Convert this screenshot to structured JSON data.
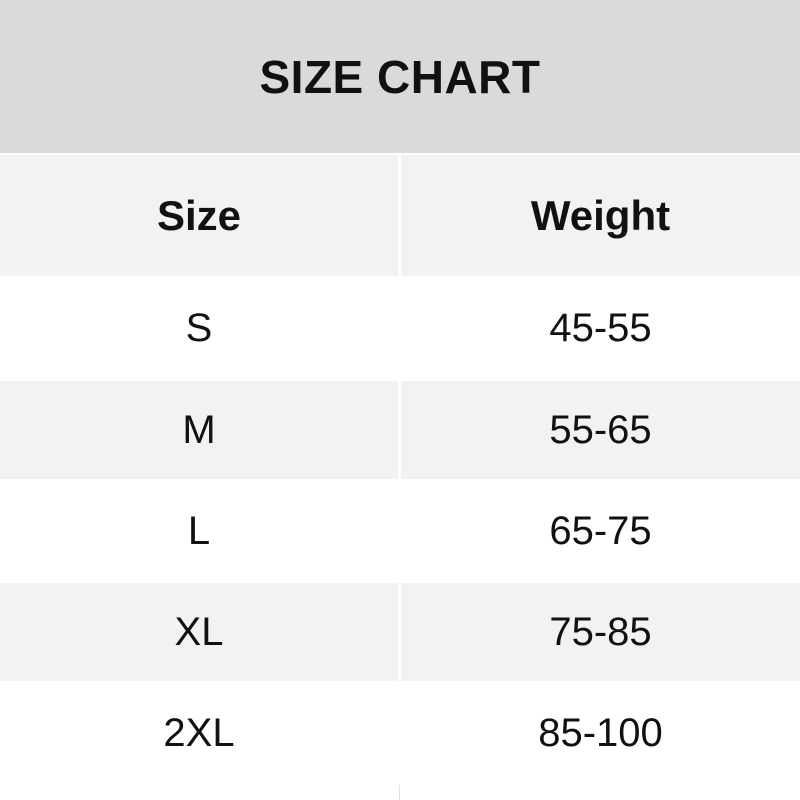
{
  "title": "SIZE CHART",
  "headers": [
    "Size",
    "Weight"
  ],
  "rows": [
    {
      "size": "S",
      "weight": "45-55"
    },
    {
      "size": "M",
      "weight": "55-65"
    },
    {
      "size": "L",
      "weight": "65-75"
    },
    {
      "size": "XL",
      "weight": "75-85"
    },
    {
      "size": "2XL",
      "weight": "85-100"
    }
  ]
}
